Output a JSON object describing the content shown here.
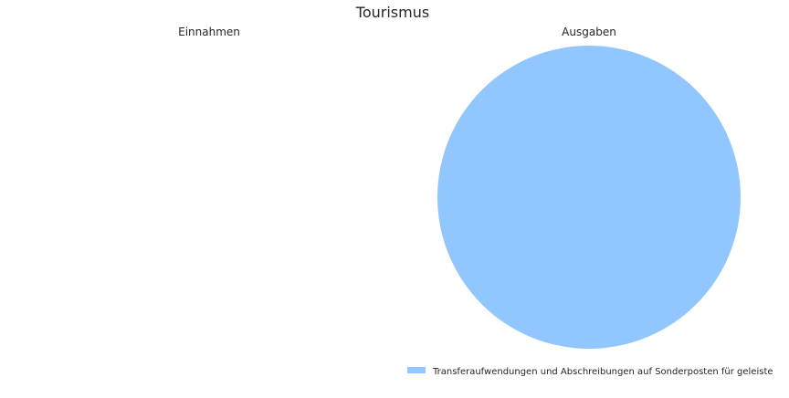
{
  "chart_data": {
    "type": "pie",
    "title": "Tourismus",
    "pies": [
      {
        "title": "Einnahmen",
        "slices": []
      },
      {
        "title": "Ausgaben",
        "slices": [
          {
            "label": "Transferaufwendungen und Abschreibungen auf Sonderposten für geleiste",
            "value": 100,
            "color": "#92c6ff"
          }
        ]
      }
    ],
    "legend": {
      "placement": "bottom-right",
      "entries": [
        {
          "label": "Transferaufwendungen und Abschreibungen auf Sonderposten für geleiste",
          "color": "#92c6ff"
        }
      ]
    }
  }
}
